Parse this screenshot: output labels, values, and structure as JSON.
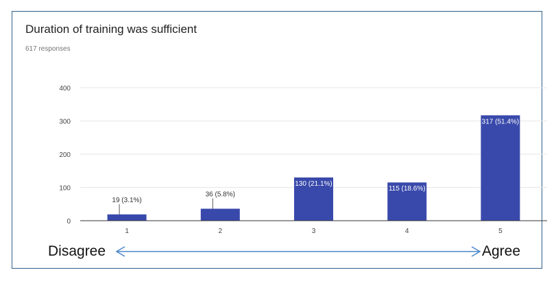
{
  "title": "Duration of training was sufficient",
  "subtitle": "617 responses",
  "annotations": {
    "left": "Disagree",
    "right": "Agree"
  },
  "colors": {
    "bar": "#3949ab",
    "grid": "#e6e6e6",
    "axis": "#333333",
    "arrow": "#4a86c8"
  },
  "chart_data": {
    "type": "bar",
    "title": "Duration of training was sufficient",
    "categories": [
      "1",
      "2",
      "3",
      "4",
      "5"
    ],
    "values": [
      19,
      36,
      130,
      115,
      317
    ],
    "data_labels": [
      "19 (3.1%)",
      "36 (5.8%)",
      "130 (21.1%)",
      "115 (18.6%)",
      "317 (51.4%)"
    ],
    "yticks": [
      0,
      100,
      200,
      300,
      400
    ],
    "ylim": [
      0,
      400
    ],
    "grid": true,
    "xlabel": "",
    "ylabel": ""
  }
}
